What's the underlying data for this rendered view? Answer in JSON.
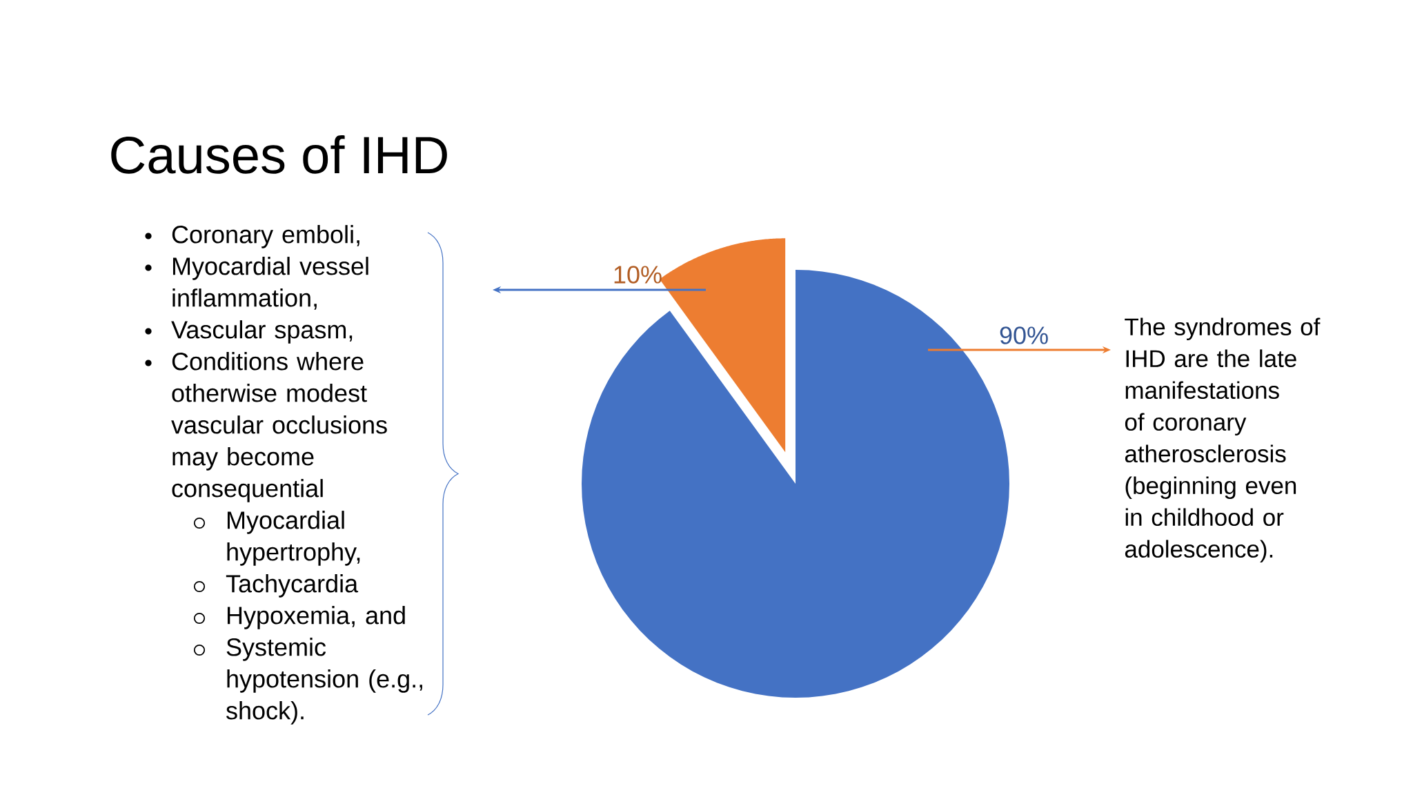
{
  "chart_data": {
    "type": "pie",
    "title": "Causes of IHD",
    "categories": [
      null,
      null
    ],
    "values": [
      90,
      10
    ],
    "colors": [
      "#4472c4",
      "#ed7d31"
    ],
    "value_labels": [
      "90%",
      "10%"
    ],
    "annotations": [
      "Coronary emboli,",
      "Myocardial vessel inflammation,",
      "Vascular spasm,",
      "Conditions where otherwise modest vascular occlusions may become consequential",
      "Myocardial hypertrophy,",
      "Tachycardia",
      "Hypoxemia, and",
      "Systemic hypotension (e.g., shock).",
      "The syndromes of IHD are the late manifestations of coronary atherosclerosis (beginning even in childhood or adolescence)."
    ]
  }
}
